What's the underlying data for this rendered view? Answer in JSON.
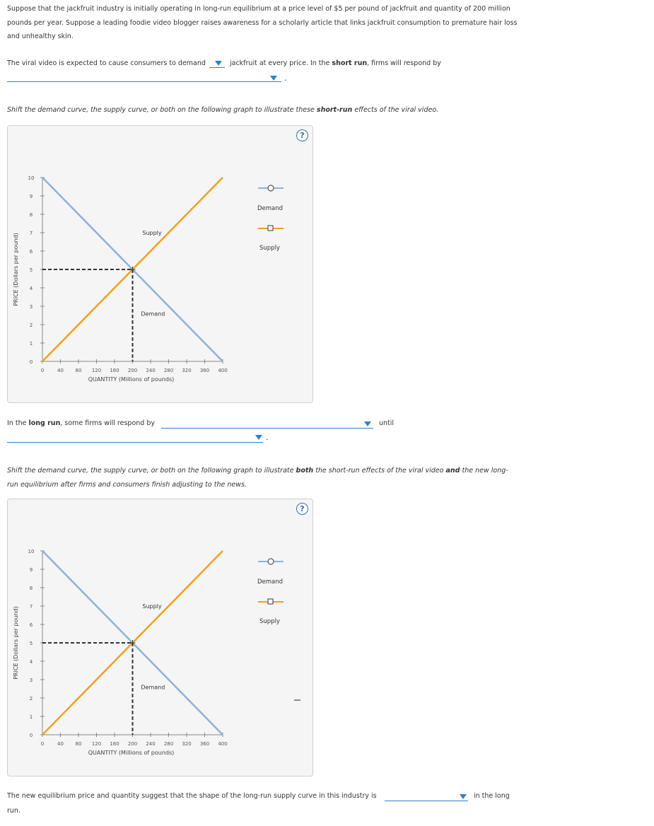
{
  "intro": {
    "line1": "Suppose that the jackfruit industry is initially operating in long-run equilibrium at a price level of $5 per pound of jackfruit and quantity of 200 million",
    "line2": "pounds per year. Suppose a leading foodie video blogger raises awareness for a scholarly article that links jackfruit consumption to premature hair loss",
    "line3": "and unhealthy skin."
  },
  "q1": {
    "prefix": "The viral video is expected to cause consumers to demand",
    "mid": "jackfruit at every price. In the",
    "bold": "short run",
    "suffix": ", firms will respond by",
    "period": "."
  },
  "instr1": {
    "a": "Shift the demand curve, the supply curve, or both on the following graph to illustrate these",
    "bold": "short-run",
    "b": "effects of the viral video."
  },
  "q2": {
    "prefix": "In the",
    "bold": "long run",
    "mid": ", some firms will respond by",
    "until": "until",
    "period": "."
  },
  "instr2": {
    "a": "Shift the demand curve, the supply curve, or both on the following graph to illustrate",
    "bold1": "both",
    "b": "the short-run effects of the viral video",
    "bold2": "and",
    "c": "the new long-",
    "line2": "run equilibrium after firms and consumers finish adjusting to the news."
  },
  "q3": {
    "prefix": "The new equilibrium price and quantity suggest that the shape of the long-run supply curve in this industry is",
    "suffix": "in the long",
    "line2": "run."
  },
  "help_symbol": "?",
  "colors": {
    "demand": "#8fb2d6",
    "supply": "#f0a020",
    "equilibrium_dash": "#333333",
    "dropdown": "#2f80c9"
  },
  "charts": [
    {
      "ylabel": "PRICE (Dollars per pound)",
      "xlabel": "QUANTITY (Millions of pounds)",
      "legend": {
        "demand": "Demand",
        "supply": "Supply"
      },
      "curve_labels": {
        "demand": "Demand",
        "supply": "Supply"
      }
    },
    {
      "ylabel": "PRICE (Dollars per pound)",
      "xlabel": "QUANTITY (Millions of pounds)",
      "legend": {
        "demand": "Demand",
        "supply": "Supply"
      },
      "curve_labels": {
        "demand": "Demand",
        "supply": "Supply"
      }
    }
  ],
  "chart_data": [
    {
      "type": "line",
      "x_ticks": [
        0,
        40,
        80,
        120,
        160,
        200,
        240,
        280,
        320,
        360,
        400
      ],
      "y_ticks": [
        0,
        1,
        2,
        3,
        4,
        5,
        6,
        7,
        8,
        9,
        10
      ],
      "xlim": [
        0,
        400
      ],
      "ylim": [
        0,
        10
      ],
      "xlabel": "QUANTITY (Millions of pounds)",
      "ylabel": "PRICE (Dollars per pound)",
      "series": [
        {
          "name": "Demand",
          "x": [
            0,
            400
          ],
          "y": [
            10,
            0
          ]
        },
        {
          "name": "Supply",
          "x": [
            0,
            400
          ],
          "y": [
            0,
            10
          ]
        }
      ],
      "equilibrium": {
        "x": 200,
        "y": 5
      }
    },
    {
      "type": "line",
      "x_ticks": [
        0,
        40,
        80,
        120,
        160,
        200,
        240,
        280,
        320,
        360,
        400
      ],
      "y_ticks": [
        0,
        1,
        2,
        3,
        4,
        5,
        6,
        7,
        8,
        9,
        10
      ],
      "xlim": [
        0,
        400
      ],
      "ylim": [
        0,
        10
      ],
      "xlabel": "QUANTITY (Millions of pounds)",
      "ylabel": "PRICE (Dollars per pound)",
      "series": [
        {
          "name": "Demand",
          "x": [
            0,
            400
          ],
          "y": [
            10,
            0
          ]
        },
        {
          "name": "Supply",
          "x": [
            0,
            400
          ],
          "y": [
            0,
            10
          ]
        }
      ],
      "equilibrium": {
        "x": 200,
        "y": 5
      }
    }
  ]
}
